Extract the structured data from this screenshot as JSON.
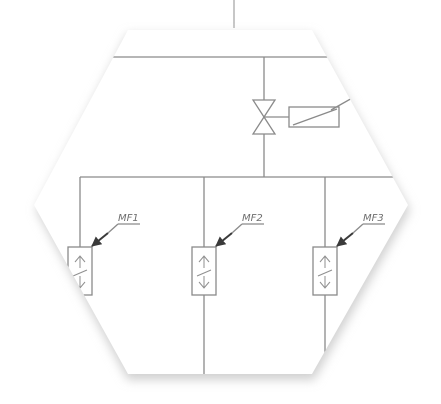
{
  "diagram": {
    "feeders": [
      {
        "label": "MF1"
      },
      {
        "label": "MF2"
      },
      {
        "label": "MF3"
      }
    ],
    "colors": {
      "line": "#8a8a8a",
      "background": "#ffffff",
      "shadow": "#d0d0d0"
    },
    "icons": [
      "gate-valve-icon",
      "actuator-icon",
      "flow-meter-icon"
    ]
  }
}
